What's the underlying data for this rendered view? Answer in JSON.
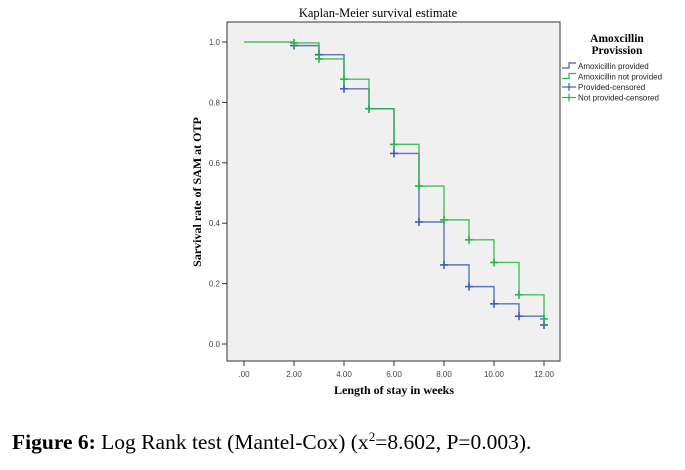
{
  "chart_data": {
    "type": "line",
    "subtype": "kaplan-meier-step",
    "title": "Kaplan-Meier survival estimate",
    "xlabel": "Length of stay in weeks",
    "ylabel": "Sarvival rate of SAM at OTP",
    "xlim": [
      0,
      12
    ],
    "ylim": [
      0,
      1
    ],
    "x_ticks": [
      0,
      2,
      4,
      6,
      8,
      10,
      12
    ],
    "x_tick_labels": [
      ".00",
      "2.00",
      "4.00",
      "6.00",
      "8.00",
      "10.00",
      "12.00"
    ],
    "y_ticks": [
      0,
      0.2,
      0.4,
      0.6,
      0.8,
      1.0
    ],
    "y_tick_labels": [
      "0.0",
      "0.2",
      "0.4",
      "0.6",
      "0.8",
      "1.0"
    ],
    "grid": false,
    "legend": {
      "title_line1": "Amoxcillin",
      "title_line2": "Provission",
      "placement": "right",
      "entries": [
        {
          "label": "Amoxicillin provided",
          "kind": "line",
          "series": 0
        },
        {
          "label": "Amoxicillin not provided",
          "kind": "line",
          "series": 1
        },
        {
          "label": "Provided-censored",
          "kind": "censor",
          "series": 0
        },
        {
          "label": "Not provided-censored",
          "kind": "censor",
          "series": 1
        }
      ]
    },
    "series": [
      {
        "name": "Amoxicillin provided",
        "color": "#3f5fb0",
        "start_x": 2,
        "steps": [
          {
            "x": 2,
            "y": 0.988
          },
          {
            "x": 3,
            "y": 0.958
          },
          {
            "x": 4,
            "y": 0.845
          },
          {
            "x": 5,
            "y": 0.779
          },
          {
            "x": 6,
            "y": 0.631
          },
          {
            "x": 7,
            "y": 0.404
          },
          {
            "x": 8,
            "y": 0.262
          },
          {
            "x": 9,
            "y": 0.19
          },
          {
            "x": 10,
            "y": 0.133
          },
          {
            "x": 11,
            "y": 0.092
          },
          {
            "x": 12,
            "y": 0.063
          }
        ],
        "censored": [
          {
            "x": 2,
            "y": 0.988
          },
          {
            "x": 3,
            "y": 0.958
          },
          {
            "x": 4,
            "y": 0.845
          },
          {
            "x": 5,
            "y": 0.779
          },
          {
            "x": 6,
            "y": 0.631
          },
          {
            "x": 7,
            "y": 0.404
          },
          {
            "x": 8,
            "y": 0.262
          },
          {
            "x": 9,
            "y": 0.19
          },
          {
            "x": 10,
            "y": 0.133
          },
          {
            "x": 11,
            "y": 0.092
          },
          {
            "x": 12,
            "y": 0.063
          }
        ]
      },
      {
        "name": "Amoxicillin not provided",
        "color": "#2db34a",
        "start_x": 0,
        "steps": [
          {
            "x": 0,
            "y": 1.0
          },
          {
            "x": 2,
            "y": 0.997
          },
          {
            "x": 3,
            "y": 0.944
          },
          {
            "x": 4,
            "y": 0.877
          },
          {
            "x": 5,
            "y": 0.779
          },
          {
            "x": 6,
            "y": 0.661
          },
          {
            "x": 7,
            "y": 0.523
          },
          {
            "x": 8,
            "y": 0.411
          },
          {
            "x": 9,
            "y": 0.345
          },
          {
            "x": 10,
            "y": 0.27
          },
          {
            "x": 11,
            "y": 0.163
          },
          {
            "x": 12,
            "y": 0.083
          }
        ],
        "censored": [
          {
            "x": 2,
            "y": 0.997
          },
          {
            "x": 3,
            "y": 0.944
          },
          {
            "x": 4,
            "y": 0.877
          },
          {
            "x": 5,
            "y": 0.779
          },
          {
            "x": 6,
            "y": 0.661
          },
          {
            "x": 7,
            "y": 0.523
          },
          {
            "x": 8,
            "y": 0.411
          },
          {
            "x": 9,
            "y": 0.345
          },
          {
            "x": 10,
            "y": 0.27
          },
          {
            "x": 11,
            "y": 0.163
          },
          {
            "x": 12,
            "y": 0.083
          }
        ]
      }
    ]
  },
  "caption": {
    "label": "Figure 6:",
    "text_before_sup": " Log Rank test (Mantel-Cox) (x",
    "sup": "2",
    "text_after_sup": "=8.602, P=0.003)."
  },
  "colors": {
    "plot_background": "#f0f0f0",
    "frame": "#555555"
  }
}
